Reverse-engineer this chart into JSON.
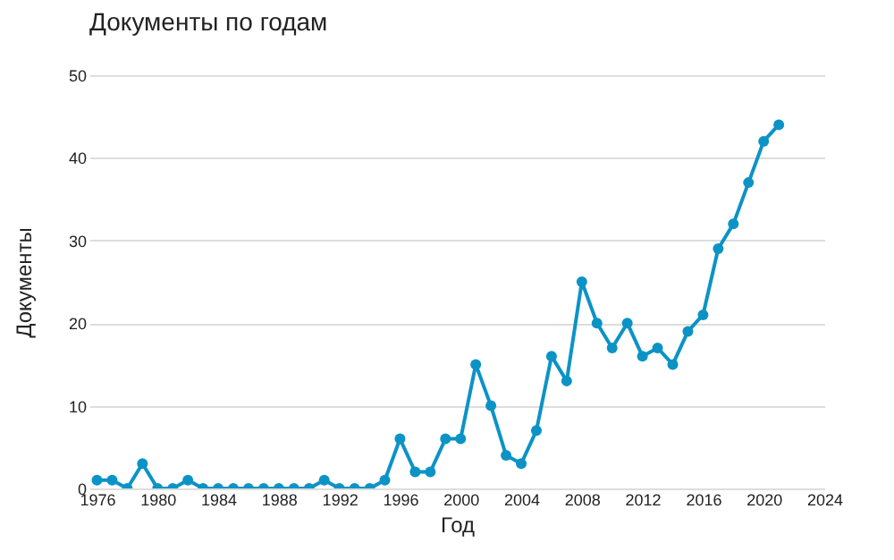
{
  "chart_data": {
    "type": "line",
    "title": "Документы по годам",
    "xlabel": "Год",
    "ylabel": "Документы",
    "x": [
      1976,
      1977,
      1978,
      1979,
      1980,
      1981,
      1982,
      1983,
      1984,
      1985,
      1986,
      1987,
      1988,
      1989,
      1990,
      1991,
      1992,
      1993,
      1994,
      1995,
      1996,
      1997,
      1998,
      1999,
      2000,
      2001,
      2002,
      2003,
      2004,
      2005,
      2006,
      2007,
      2008,
      2009,
      2010,
      2011,
      2012,
      2013,
      2014,
      2015,
      2016,
      2017,
      2018,
      2019,
      2020,
      2021
    ],
    "series": [
      {
        "color": "#0c93c6",
        "values": [
          1,
          1,
          0,
          3,
          0,
          0,
          1,
          0,
          0,
          0,
          0,
          0,
          0,
          0,
          0,
          1,
          0,
          0,
          0,
          1,
          6,
          2,
          2,
          6,
          6,
          15,
          10,
          4,
          3,
          7,
          16,
          13,
          25,
          20,
          17,
          20,
          16,
          17,
          15,
          19,
          21,
          29,
          32,
          37,
          42,
          44
        ]
      }
    ],
    "xlim": [
      1975.5,
      2024
    ],
    "xticks": [
      1976,
      1980,
      1984,
      1988,
      1992,
      1996,
      2000,
      2004,
      2008,
      2012,
      2016,
      2020,
      2024
    ],
    "ylim": [
      0,
      50
    ],
    "yticks": [
      0,
      10,
      20,
      30,
      40,
      50
    ],
    "grid": "y",
    "marker": "circle",
    "line_style": "solid"
  }
}
